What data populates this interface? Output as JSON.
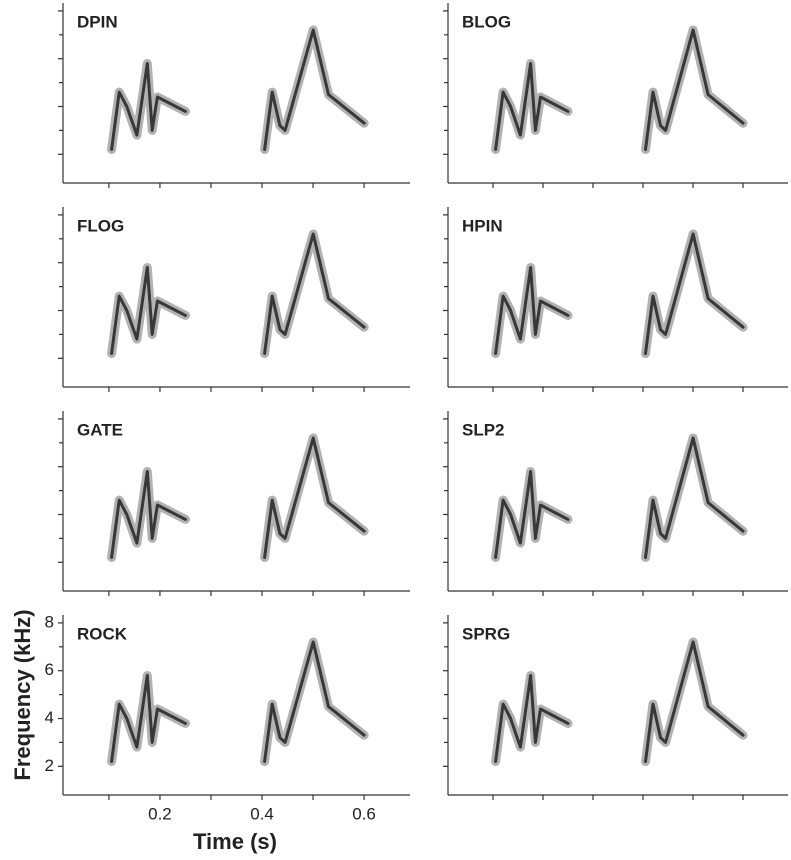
{
  "figure": {
    "panels": [
      "DPIN",
      "BLOG",
      "FLOG",
      "HPIN",
      "GATE",
      "SLP2",
      "ROCK",
      "SPRG"
    ],
    "xlabel": "Time (s)",
    "ylabel": "Frequency (kHz)",
    "xlim": [
      0.01,
      0.69
    ],
    "ylim": [
      0.8,
      8.33
    ],
    "xticks": [
      0.2,
      0.4,
      0.6
    ],
    "xminor": [
      0.1,
      0.3,
      0.5
    ],
    "yticks": [
      2,
      4,
      6,
      8
    ],
    "yminor": [
      3,
      5,
      7
    ]
  }
}
